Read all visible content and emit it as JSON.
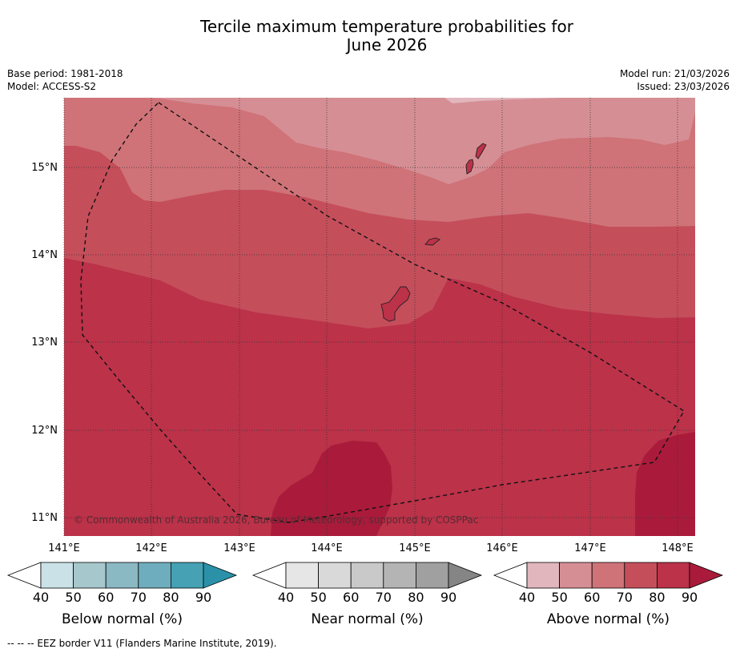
{
  "title_line1": "Tercile maximum temperature probabilities for",
  "title_line2": "June 2026",
  "meta": {
    "base_period": "Base period: 1981-2018",
    "model": "Model: ACCESS-S2",
    "model_run": "Model run: 21/03/2026",
    "issued": "Issued: 23/03/2026"
  },
  "map": {
    "lat_labels": [
      "15°N",
      "14°N",
      "13°N",
      "12°N",
      "11°N"
    ],
    "lon_labels": [
      "141°E",
      "142°E",
      "143°E",
      "144°E",
      "145°E",
      "146°E",
      "147°E",
      "148°E"
    ],
    "copyright": "© Commonwealth of Australia 2026, Bureau of Meteorology, supported by COSPPac"
  },
  "colorbars": [
    {
      "name": "below",
      "label": "Below normal (%)",
      "ticks": [
        "40",
        "50",
        "60",
        "70",
        "80",
        "90"
      ],
      "colors": [
        "#ffffff",
        "#c9e1e7",
        "#a6c7cc",
        "#8ab8c3",
        "#6eadbd",
        "#45a1b3",
        "#2a91a8"
      ]
    },
    {
      "name": "near",
      "label": "Near normal (%)",
      "ticks": [
        "40",
        "50",
        "60",
        "70",
        "80",
        "90"
      ],
      "colors": [
        "#ffffff",
        "#e6e6e6",
        "#d9d9d9",
        "#c9c9c9",
        "#b4b4b4",
        "#a0a0a0",
        "#858585"
      ]
    },
    {
      "name": "above",
      "label": "Above normal (%)",
      "ticks": [
        "40",
        "50",
        "60",
        "70",
        "80",
        "90"
      ],
      "colors": [
        "#ffffff",
        "#e1b6bd",
        "#d68e95",
        "#cf7378",
        "#c54e5b",
        "#bb3249",
        "#aa1b3b"
      ]
    }
  ],
  "footer": "--  --  -- EEZ border V11 (Flanders Marine Institute, 2019)."
}
